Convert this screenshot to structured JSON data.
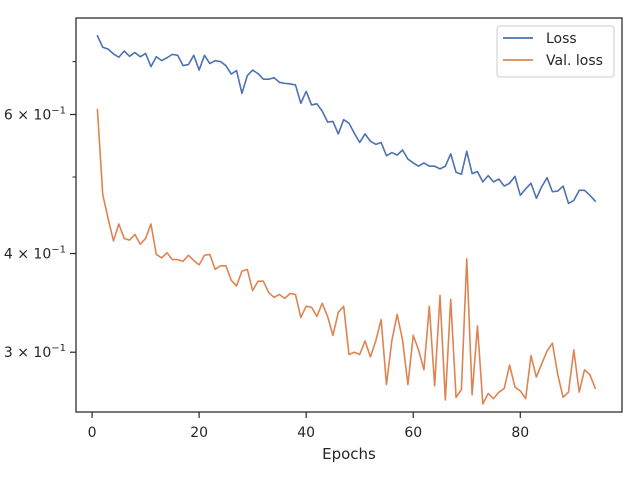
{
  "chart_data": {
    "type": "line",
    "xlabel": "Epochs",
    "ylabel": "",
    "title": "",
    "xlim": [
      -3,
      99
    ],
    "ylim": [
      0.252,
      0.795
    ],
    "yscale": "log",
    "grid": false,
    "legend_position": "top-right",
    "x_ticks": [
      {
        "value": 0,
        "label": "0"
      },
      {
        "value": 20,
        "label": "20"
      },
      {
        "value": 40,
        "label": "40"
      },
      {
        "value": 60,
        "label": "60"
      },
      {
        "value": 80,
        "label": "80"
      }
    ],
    "y_ticks_major": [
      {
        "value": 0.3,
        "label": "3 × 10",
        "exp": "−1"
      },
      {
        "value": 0.4,
        "label": "4 × 10",
        "exp": "−1"
      },
      {
        "value": 0.6,
        "label": "6 × 10",
        "exp": "−1"
      }
    ],
    "y_ticks_minor": [
      0.5,
      0.7
    ],
    "series": [
      {
        "name": "Loss",
        "color": "#4c72b0",
        "x": [
          1,
          2,
          3,
          4,
          5,
          6,
          7,
          8,
          9,
          10,
          11,
          12,
          13,
          14,
          15,
          16,
          17,
          18,
          19,
          20,
          21,
          22,
          23,
          24,
          25,
          26,
          27,
          28,
          29,
          30,
          31,
          32,
          33,
          34,
          35,
          36,
          37,
          38,
          39,
          40,
          41,
          42,
          43,
          44,
          45,
          46,
          47,
          48,
          49,
          50,
          51,
          52,
          53,
          54,
          55,
          56,
          57,
          58,
          59,
          60,
          61,
          62,
          63,
          64,
          65,
          66,
          67,
          68,
          69,
          70,
          71,
          72,
          73,
          74,
          75,
          76,
          77,
          78,
          79,
          80,
          81,
          82,
          83,
          84,
          85,
          86,
          87,
          88,
          89,
          90,
          91,
          92,
          93,
          94
        ],
        "values": [
          0.755,
          0.73,
          0.726,
          0.716,
          0.709,
          0.722,
          0.711,
          0.719,
          0.71,
          0.717,
          0.69,
          0.71,
          0.702,
          0.708,
          0.715,
          0.713,
          0.692,
          0.694,
          0.713,
          0.683,
          0.713,
          0.696,
          0.702,
          0.7,
          0.692,
          0.675,
          0.682,
          0.638,
          0.672,
          0.683,
          0.676,
          0.665,
          0.665,
          0.668,
          0.659,
          0.657,
          0.656,
          0.654,
          0.62,
          0.642,
          0.617,
          0.619,
          0.606,
          0.587,
          0.588,
          0.567,
          0.591,
          0.585,
          0.568,
          0.553,
          0.567,
          0.555,
          0.55,
          0.553,
          0.532,
          0.537,
          0.533,
          0.541,
          0.527,
          0.521,
          0.516,
          0.521,
          0.516,
          0.516,
          0.512,
          0.516,
          0.535,
          0.507,
          0.504,
          0.539,
          0.505,
          0.508,
          0.493,
          0.502,
          0.493,
          0.497,
          0.487,
          0.491,
          0.501,
          0.474,
          0.483,
          0.491,
          0.47,
          0.486,
          0.499,
          0.479,
          0.48,
          0.487,
          0.463,
          0.467,
          0.481,
          0.481,
          0.474,
          0.466
        ]
      },
      {
        "name": "Val. loss",
        "color": "#dd8452",
        "x": [
          1,
          2,
          3,
          4,
          5,
          6,
          7,
          8,
          9,
          10,
          11,
          12,
          13,
          14,
          15,
          16,
          17,
          18,
          19,
          20,
          21,
          22,
          23,
          24,
          25,
          26,
          27,
          28,
          29,
          30,
          31,
          32,
          33,
          34,
          35,
          36,
          37,
          38,
          39,
          40,
          41,
          42,
          43,
          44,
          45,
          46,
          47,
          48,
          49,
          50,
          51,
          52,
          53,
          54,
          55,
          56,
          57,
          58,
          59,
          60,
          61,
          62,
          63,
          64,
          65,
          66,
          67,
          68,
          69,
          70,
          71,
          72,
          73,
          74,
          75,
          76,
          77,
          78,
          79,
          80,
          81,
          82,
          83,
          84,
          85,
          86,
          87,
          88,
          89,
          90,
          91,
          92,
          93,
          94
        ],
        "values": [
          0.609,
          0.475,
          0.443,
          0.415,
          0.436,
          0.418,
          0.416,
          0.423,
          0.411,
          0.418,
          0.436,
          0.399,
          0.395,
          0.401,
          0.393,
          0.393,
          0.391,
          0.398,
          0.392,
          0.387,
          0.398,
          0.399,
          0.382,
          0.386,
          0.386,
          0.37,
          0.364,
          0.38,
          0.382,
          0.359,
          0.369,
          0.369,
          0.357,
          0.352,
          0.355,
          0.351,
          0.356,
          0.355,
          0.332,
          0.343,
          0.342,
          0.333,
          0.346,
          0.333,
          0.315,
          0.337,
          0.343,
          0.298,
          0.3,
          0.298,
          0.31,
          0.296,
          0.31,
          0.33,
          0.273,
          0.31,
          0.335,
          0.311,
          0.273,
          0.315,
          0.302,
          0.285,
          0.343,
          0.272,
          0.354,
          0.261,
          0.35,
          0.263,
          0.269,
          0.394,
          0.265,
          0.324,
          0.258,
          0.266,
          0.262,
          0.267,
          0.27,
          0.289,
          0.271,
          0.268,
          0.262,
          0.297,
          0.279,
          0.29,
          0.301,
          0.308,
          0.281,
          0.263,
          0.267,
          0.302,
          0.267,
          0.285,
          0.281,
          0.27
        ]
      }
    ]
  }
}
